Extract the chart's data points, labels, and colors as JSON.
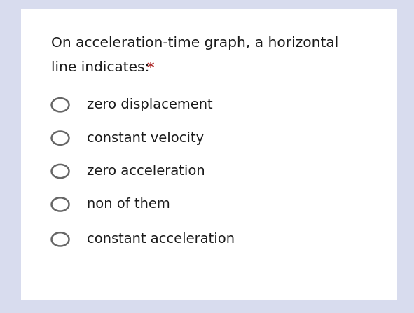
{
  "background_color": "#ffffff",
  "outer_background": "#d8dcee",
  "title_line1": "On acceleration-time graph, a horizontal",
  "title_line2": "line indicates: ",
  "title_asterisk": "*",
  "title_color": "#1a1a1a",
  "asterisk_color": "#b03030",
  "options": [
    "zero displacement",
    "constant velocity",
    "zero acceleration",
    "non of them",
    "constant acceleration"
  ],
  "option_color": "#1a1a1a",
  "circle_edge_color": "#666666",
  "title_fontsize": 14.5,
  "option_fontsize": 14.0,
  "fig_width": 5.91,
  "fig_height": 4.47
}
